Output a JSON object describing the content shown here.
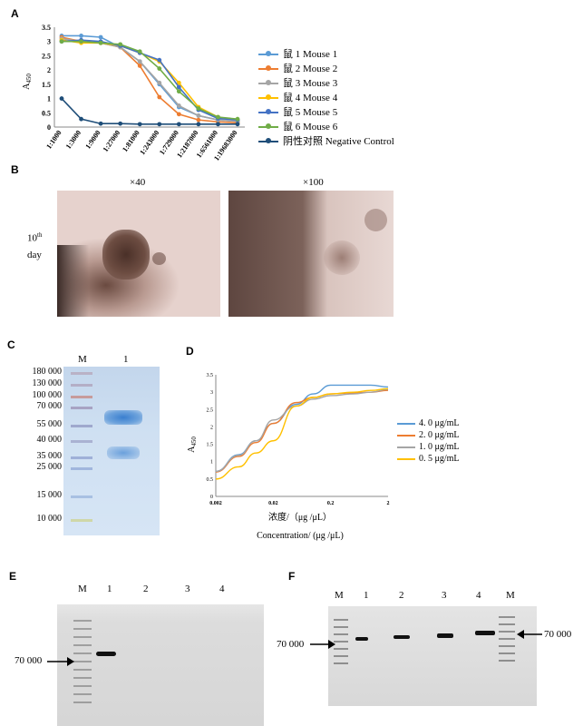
{
  "panels": {
    "A": "A",
    "B": "B",
    "C": "C",
    "D": "D",
    "E": "E",
    "F": "F"
  },
  "chartA": {
    "ylabel_main": "A",
    "ylabel_sub": "450",
    "yticks": [
      "0",
      "0.5",
      "1",
      "1.5",
      "2",
      "2.5",
      "3",
      "3.5"
    ],
    "xcats": [
      "1:1000",
      "1:3000",
      "1:9000",
      "1:27000",
      "1:81000",
      "1:243000",
      "1:729000",
      "1:2187000",
      "1:6561000",
      "1:19683000"
    ]
  },
  "chart_data": [
    {
      "type": "line",
      "categories": [
        "1:1000",
        "1:3000",
        "1:9000",
        "1:27000",
        "1:81000",
        "1:243000",
        "1:729000",
        "1:2187000",
        "1:6561000",
        "1:19683000"
      ],
      "ylabel": "A450",
      "ylim": [
        0,
        3.5
      ],
      "series": [
        {
          "name": "鼠 1 Mouse 1",
          "color": "#5b9bd5",
          "values": [
            3.2,
            3.2,
            3.15,
            2.8,
            2.3,
            1.5,
            0.7,
            0.4,
            0.25,
            0.2
          ]
        },
        {
          "name": "鼠 2 Mouse 2",
          "color": "#ed7d31",
          "values": [
            3.15,
            3.0,
            2.95,
            2.8,
            2.15,
            1.05,
            0.45,
            0.25,
            0.18,
            0.15
          ]
        },
        {
          "name": "鼠 3 Mouse 3",
          "color": "#a5a5a5",
          "values": [
            3.1,
            3.0,
            2.95,
            2.8,
            2.3,
            1.55,
            0.75,
            0.4,
            0.25,
            0.2
          ]
        },
        {
          "name": "鼠 4 Mouse 4",
          "color": "#ffc000",
          "values": [
            3.05,
            2.95,
            2.95,
            2.85,
            2.6,
            2.3,
            1.55,
            0.7,
            0.35,
            0.25
          ]
        },
        {
          "name": "鼠 5 Mouse 5",
          "color": "#4472c4",
          "values": [
            3.0,
            3.05,
            3.0,
            2.85,
            2.6,
            2.35,
            1.4,
            0.6,
            0.3,
            0.25
          ]
        },
        {
          "name": "鼠 6 Mouse 6",
          "color": "#70ad47",
          "values": [
            3.0,
            3.0,
            2.95,
            2.9,
            2.65,
            2.05,
            1.25,
            0.65,
            0.35,
            0.28
          ]
        },
        {
          "name": "阴性对照  Negative Control",
          "color": "#1f4e79",
          "values": [
            1.0,
            0.28,
            0.12,
            0.12,
            0.1,
            0.1,
            0.1,
            0.1,
            0.1,
            0.1
          ]
        }
      ]
    },
    {
      "type": "line",
      "x": [
        0.002,
        0.005,
        0.01,
        0.02,
        0.05,
        0.1,
        0.2,
        0.5,
        1,
        2
      ],
      "xlabel": "浓度/（μg /μL）",
      "ylabel": "A450",
      "ylim": [
        0,
        3.5
      ],
      "series": [
        {
          "name": "4. 0  μg/mL",
          "color": "#5b9bd5",
          "values": [
            0.72,
            1.2,
            1.6,
            2.1,
            2.65,
            2.95,
            3.2,
            3.2,
            3.2,
            3.15
          ]
        },
        {
          "name": "2. 0  μg/mL",
          "color": "#ed7d31",
          "values": [
            0.7,
            1.15,
            1.55,
            2.1,
            2.7,
            2.85,
            2.95,
            2.98,
            3.0,
            3.05
          ]
        },
        {
          "name": "1. 0  μg/mL",
          "color": "#a5a5a5",
          "values": [
            0.72,
            1.18,
            1.6,
            2.2,
            2.6,
            2.8,
            2.9,
            2.95,
            3.0,
            3.08
          ]
        },
        {
          "name": "0. 5  μg/mL",
          "color": "#ffc000",
          "values": [
            0.5,
            0.85,
            1.25,
            1.6,
            2.6,
            2.85,
            2.95,
            3.0,
            3.05,
            3.1
          ]
        }
      ]
    }
  ],
  "chartD": {
    "yticks": [
      "0",
      "0.5",
      "1",
      "1.5",
      "2",
      "2.5",
      "3",
      "3.5"
    ],
    "xticks": [
      "0.002",
      "0.02",
      "0.2",
      "2"
    ],
    "xlabel_cn": "浓度/（μg /μL）",
    "xlabel_en": "Concentration/ (μg /μL)"
  },
  "panelB": {
    "mag1": "×40",
    "mag2": "×100",
    "day_num": "10",
    "day_sup": "th",
    "day_word": "day"
  },
  "panelC": {
    "lane_m": "M",
    "lane_1": "1",
    "markers": [
      "180 000",
      "130 000",
      "100 000",
      "70 000",
      "55 000",
      "40 000",
      "35 000",
      "25 000",
      "15 000",
      "10 000"
    ]
  },
  "panelE": {
    "lanes": [
      "M",
      "1",
      "2",
      "3",
      "4"
    ],
    "marker_label": "70 000"
  },
  "panelF": {
    "lanes": [
      "M",
      "1",
      "2",
      "3",
      "4",
      "M"
    ],
    "marker_left": "70 000",
    "marker_right": "70 000"
  }
}
